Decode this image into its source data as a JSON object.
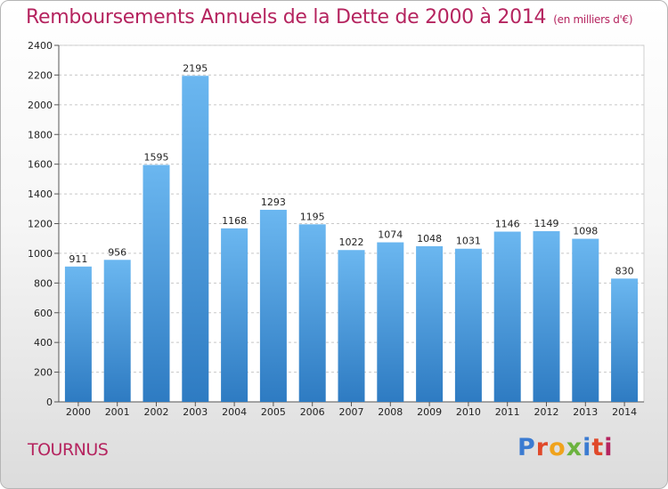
{
  "title": "Remboursements Annuels de la Dette de 2000 à 2014",
  "unit_note": "(en milliers d'€)",
  "city": "TOURNUS",
  "logo": {
    "text": "Proxiti",
    "letters": [
      "P",
      "r",
      "o",
      "x",
      "i",
      "t",
      "i"
    ]
  },
  "colors": {
    "title": "#b5245f",
    "bar_top": "#6bb7f0",
    "bar_bottom": "#2e7bc2"
  },
  "chart_data": {
    "type": "bar",
    "title": "Remboursements Annuels de la Dette de 2000 à 2014",
    "xlabel": "",
    "ylabel": "",
    "categories": [
      "2000",
      "2001",
      "2002",
      "2003",
      "2004",
      "2005",
      "2006",
      "2007",
      "2008",
      "2009",
      "2010",
      "2011",
      "2012",
      "2013",
      "2014"
    ],
    "values": [
      911,
      956,
      1595,
      2195,
      1168,
      1293,
      1195,
      1022,
      1074,
      1048,
      1031,
      1146,
      1149,
      1098,
      830
    ],
    "ylim": [
      0,
      2400
    ],
    "yticks": [
      0,
      200,
      400,
      600,
      800,
      1000,
      1200,
      1400,
      1600,
      1800,
      2000,
      2200,
      2400
    ],
    "grid": true
  }
}
